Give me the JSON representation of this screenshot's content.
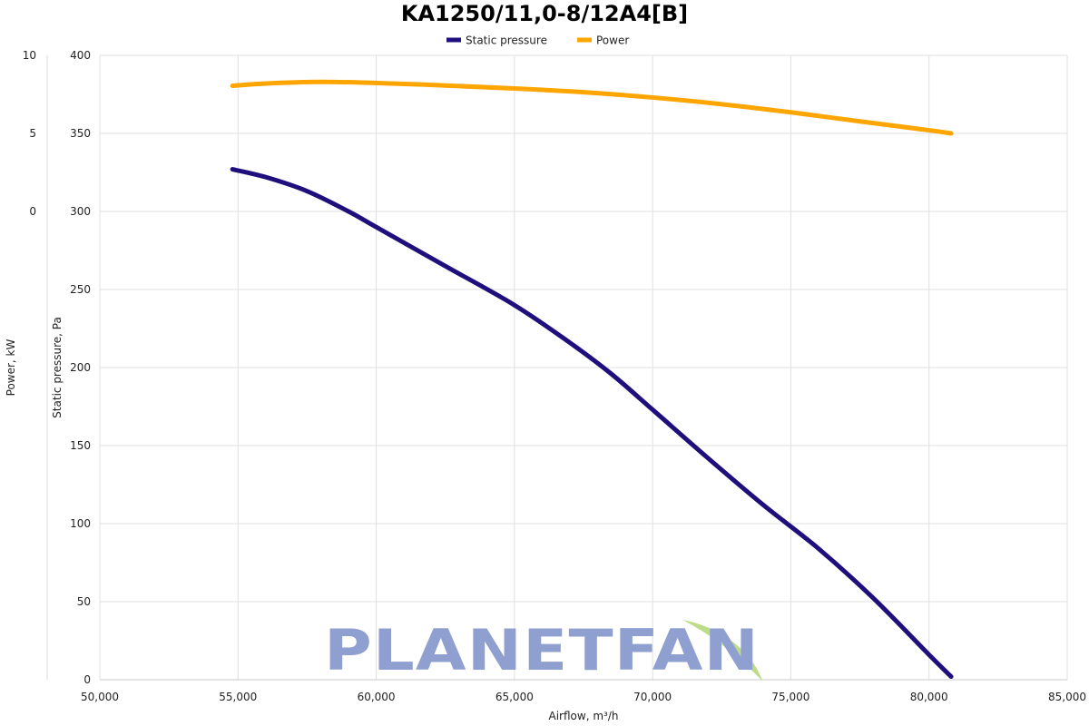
{
  "chart_data": {
    "type": "line",
    "title": "KA1250/11,0-8/12A4[B]",
    "xlabel": "Airflow, m³/h",
    "ylabel": "Static pressure, Pa",
    "y2label": "Power, kW",
    "xlim": [
      50000,
      85000
    ],
    "ylim": [
      0,
      400
    ],
    "y2lim": [
      -30,
      10
    ],
    "x_ticks": [
      "50,000",
      "55,000",
      "60,000",
      "65,000",
      "70,000",
      "75,000",
      "80,000",
      "85,000"
    ],
    "y_ticks": [
      "0",
      "50",
      "100",
      "150",
      "200",
      "250",
      "300",
      "350",
      "400"
    ],
    "y2_ticks": [
      "0",
      "5",
      "10"
    ],
    "grid": true,
    "legend_position": "top-center",
    "series": [
      {
        "name": "Static pressure",
        "color": "#1f0f7d",
        "axis": "left",
        "x": [
          54800,
          56000,
          57500,
          59000,
          60000,
          62500,
          65000,
          67000,
          68500,
          70000,
          72000,
          74000,
          76000,
          78000,
          80000,
          80800
        ],
        "y": [
          327,
          322,
          313,
          300,
          290,
          265,
          240,
          216,
          196,
          173,
          142,
          112,
          84,
          52,
          16,
          2
        ]
      },
      {
        "name": "Power",
        "color": "#ffa500",
        "axis": "left",
        "x": [
          54800,
          56000,
          58000,
          60000,
          62500,
          65000,
          67500,
          70000,
          72500,
          75000,
          77500,
          80000,
          80800
        ],
        "y": [
          380.5,
          382,
          383,
          382.3,
          380.7,
          378.8,
          376.4,
          373,
          368.7,
          363.5,
          357.7,
          352,
          350
        ]
      }
    ]
  },
  "watermark": {
    "text": "PLANETFAN",
    "color": "#8f9fd0",
    "leaf_color": "#bcdc8a"
  }
}
